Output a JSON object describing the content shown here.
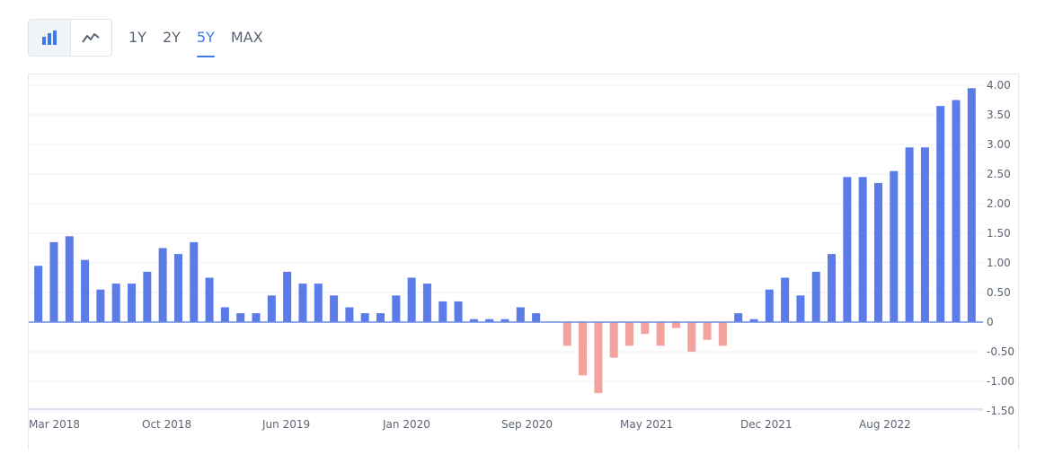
{
  "toolbar": {
    "chart_type_buttons": [
      {
        "icon": "bar-chart-icon",
        "active": true
      },
      {
        "icon": "line-chart-icon",
        "active": false
      }
    ],
    "ranges": [
      "1Y",
      "2Y",
      "5Y",
      "MAX"
    ],
    "active_range": "5Y"
  },
  "colors": {
    "positive": "#5b7be8",
    "negative": "#f3a29d",
    "accent": "#3f78ee",
    "axis": "#b8c6e8",
    "zero_line": "#6d8be0",
    "grid": "#eef0f4",
    "text": "#5b6475"
  },
  "chart_data": {
    "type": "bar",
    "x_tick_labels": [
      "Mar 2018",
      "Oct 2018",
      "Jun 2019",
      "Jan 2020",
      "Sep 2020",
      "May 2021",
      "Dec 2021",
      "Aug 2022"
    ],
    "y_tick_labels": [
      "4.00",
      "3.50",
      "3.00",
      "2.50",
      "2.00",
      "1.50",
      "1.00",
      "0.50",
      "0",
      "-0.50",
      "-1.00",
      "-1.50"
    ],
    "y_ticks": [
      4.0,
      3.5,
      3.0,
      2.5,
      2.0,
      1.5,
      1.0,
      0.5,
      0,
      -0.5,
      -1.0,
      -1.5
    ],
    "ylim": [
      -1.5,
      4.0
    ],
    "y_axis_position": "right",
    "grid": true,
    "values": [
      0.95,
      1.35,
      1.45,
      1.05,
      0.55,
      0.65,
      0.65,
      0.85,
      1.25,
      1.15,
      1.35,
      0.75,
      0.25,
      0.15,
      0.15,
      0.45,
      0.85,
      0.65,
      0.65,
      0.45,
      0.25,
      0.15,
      0.15,
      0.45,
      0.75,
      0.65,
      0.35,
      0.35,
      0.05,
      0.05,
      0.05,
      0.25,
      0.15,
      0.0,
      -0.4,
      -0.9,
      -1.2,
      -0.6,
      -0.4,
      -0.2,
      -0.4,
      -0.1,
      -0.5,
      -0.3,
      -0.4,
      0.15,
      0.05,
      0.55,
      0.75,
      0.45,
      0.85,
      1.15,
      2.45,
      2.45,
      2.35,
      2.55,
      2.95,
      2.95,
      3.65,
      3.75,
      3.95
    ],
    "xlabel": "",
    "ylabel": "",
    "title": ""
  }
}
